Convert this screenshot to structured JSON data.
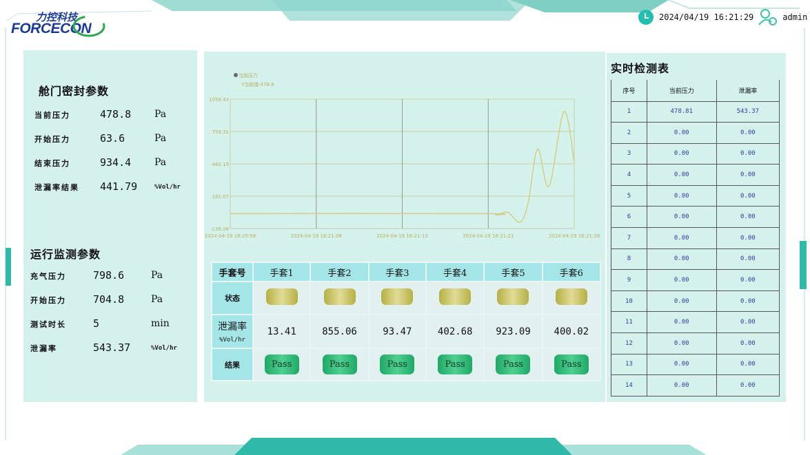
{
  "header": {
    "logo_cn": "力控科技",
    "logo_en": "FORCECON",
    "datetime": "2024/04/19 16:21:29",
    "user": "admin",
    "icons": [
      "clock-icon",
      "user-settings-icon"
    ]
  },
  "colors": {
    "accent": "#21bfb0",
    "panel": "#d4f1ec",
    "status_lamp": "#c8c468",
    "pass": "#2bb874",
    "curve": "#d2d08a"
  },
  "door_seal": {
    "title": "舱门密封参数",
    "rows": [
      {
        "label": "当前压力",
        "value": "478.8",
        "unit": "Pa"
      },
      {
        "label": "开始压力",
        "value": "63.6",
        "unit": "Pa"
      },
      {
        "label": "结束压力",
        "value": "934.4",
        "unit": "Pa"
      },
      {
        "label": "泄漏率结果",
        "value": "441.79",
        "unit": "%Vol/hr"
      }
    ]
  },
  "run_monitor": {
    "title": "运行监测参数",
    "rows": [
      {
        "label": "充气压力",
        "value": "798.6",
        "unit": "Pa"
      },
      {
        "label": "开始压力",
        "value": "704.8",
        "unit": "Pa"
      },
      {
        "label": "测试时长",
        "value": "5",
        "unit": "min"
      },
      {
        "label": "泄漏率",
        "value": "543.37",
        "unit": "%Vol/hr"
      }
    ]
  },
  "chart_data": {
    "type": "line",
    "legend": "当前压力",
    "current_label": "Y当前值:478.8",
    "yticks": [
      "1058.43",
      "759.31",
      "460.19",
      "161.07",
      "-138.06"
    ],
    "ylim": [
      -138.06,
      1058.43
    ],
    "xticks": [
      "2024-04-19 16:20:58",
      "2024-04-19 16:21:06",
      "2024-04-19 16:21:13",
      "2024-04-19 16:21:21",
      "2024-04-19 16:21:28"
    ],
    "xlim": [
      "16:20:58",
      "16:21:28"
    ],
    "grid": true,
    "series": [
      {
        "name": "当前压力",
        "points": [
          [
            "16:20:58",
            0
          ],
          [
            "16:21:20",
            0
          ],
          [
            "16:21:21.2",
            -12
          ],
          [
            "16:21:22.2",
            12
          ],
          [
            "16:21:23.3",
            -80
          ],
          [
            "16:21:24.0",
            110
          ],
          [
            "16:21:24.8",
            597
          ],
          [
            "16:21:25.8",
            252
          ],
          [
            "16:21:27.1",
            943
          ],
          [
            "16:21:28",
            478.8
          ]
        ]
      }
    ]
  },
  "gloves": {
    "header_label": "手套号",
    "status_label": "状态",
    "leak_label": "泄漏率",
    "leak_unit": "%Vol/hr",
    "result_label": "结果",
    "items": [
      {
        "name": "手套1",
        "leak": "13.41",
        "result": "Pass"
      },
      {
        "name": "手套2",
        "leak": "855.06",
        "result": "Pass"
      },
      {
        "name": "手套3",
        "leak": "93.47",
        "result": "Pass"
      },
      {
        "name": "手套4",
        "leak": "402.68",
        "result": "Pass"
      },
      {
        "name": "手套5",
        "leak": "923.09",
        "result": "Pass"
      },
      {
        "name": "手套6",
        "leak": "400.02",
        "result": "Pass"
      }
    ]
  },
  "realtime": {
    "title": "实时检测表",
    "columns": [
      "序号",
      "当前压力",
      "泄漏率"
    ],
    "rows": [
      [
        "1",
        "478.81",
        "543.37"
      ],
      [
        "2",
        "0.00",
        "0.00"
      ],
      [
        "3",
        "0.00",
        "0.00"
      ],
      [
        "4",
        "0.00",
        "0.00"
      ],
      [
        "5",
        "0.00",
        "0.00"
      ],
      [
        "6",
        "0.00",
        "0.00"
      ],
      [
        "7",
        "0.00",
        "0.00"
      ],
      [
        "8",
        "0.00",
        "0.00"
      ],
      [
        "9",
        "0.00",
        "0.00"
      ],
      [
        "10",
        "0.00",
        "0.00"
      ],
      [
        "11",
        "0.00",
        "0.00"
      ],
      [
        "12",
        "0.00",
        "0.00"
      ],
      [
        "13",
        "0.00",
        "0.00"
      ],
      [
        "14",
        "0.00",
        "0.00"
      ]
    ]
  }
}
